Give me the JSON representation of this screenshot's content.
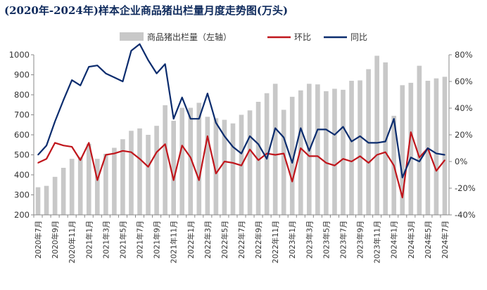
{
  "chart_data": {
    "type": "bar+line",
    "title": "(2020年-2024年)样本企业商品猪出栏量月度走势图(万头)",
    "legend_position": "top",
    "grid": false,
    "categories": [
      "2020年7月",
      "2020年8月",
      "2020年9月",
      "2020年10月",
      "2020年11月",
      "2020年12月",
      "2021年1月",
      "2021年2月",
      "2021年3月",
      "2021年4月",
      "2021年5月",
      "2021年6月",
      "2021年7月",
      "2021年8月",
      "2021年9月",
      "2021年10月",
      "2021年11月",
      "2021年12月",
      "2022年1月",
      "2022年2月",
      "2022年3月",
      "2022年4月",
      "2022年5月",
      "2022年6月",
      "2022年7月",
      "2022年8月",
      "2022年9月",
      "2022年10月",
      "2022年11月",
      "2022年12月",
      "2023年1月",
      "2023年2月",
      "2023年3月",
      "2023年4月",
      "2023年5月",
      "2023年6月",
      "2023年7月",
      "2023年8月",
      "2023年9月",
      "2023年10月",
      "2023年11月",
      "2023年12月",
      "2024年1月",
      "2024年2月",
      "2024年3月",
      "2024年4月",
      "2024年5月",
      "2024年6月",
      "2024年7月"
    ],
    "x_tick_labels": [
      "2020年7月",
      "2020年9月",
      "2020年11月",
      "2021年1月",
      "2021年3月",
      "2021年5月",
      "2021年7月",
      "2021年9月",
      "2021年11月",
      "2022年1月",
      "2022年3月",
      "2022年5月",
      "2022年7月",
      "2022年9月",
      "2022年11月",
      "2023年1月",
      "2023年3月",
      "2023年5月",
      "2023年7月",
      "2023年9月",
      "2023年11月",
      "2024年1月",
      "2024年3月",
      "2024年5月",
      "2024年7月"
    ],
    "y_left": {
      "min": 200,
      "max": 1000,
      "ticks": [
        "200",
        "300",
        "400",
        "500",
        "600",
        "700",
        "800",
        "900",
        "1000"
      ]
    },
    "y_right": {
      "min": -40,
      "max": 80,
      "ticks": [
        "-40%",
        "-20%",
        "0%",
        "20%",
        "40%",
        "60%",
        "80%"
      ]
    },
    "series": [
      {
        "name": "商品猪出栏量（左轴）",
        "type": "bar",
        "axis": "left",
        "color": "#c8c8c8",
        "values": [
          338,
          345,
          390,
          435,
          480,
          490,
          555,
          480,
          505,
          535,
          578,
          620,
          632,
          600,
          645,
          748,
          670,
          735,
          735,
          760,
          690,
          683,
          675,
          657,
          700,
          722,
          765,
          808,
          855,
          725,
          790,
          822,
          855,
          852,
          818,
          830,
          825,
          870,
          872,
          928,
          995,
          962,
          695,
          848,
          860,
          945,
          870,
          882,
          890
        ]
      },
      {
        "name": "环比",
        "type": "line",
        "axis": "right",
        "color": "#c0161c",
        "values": [
          -1,
          2,
          14,
          12,
          11,
          1,
          14,
          -14,
          5,
          6,
          8,
          7,
          2,
          -4,
          7,
          13,
          -14,
          12,
          3,
          -14,
          19,
          -9,
          0,
          -1,
          -3,
          9,
          1,
          6,
          5,
          6,
          -15,
          10,
          4,
          4,
          -1,
          -3,
          2,
          0,
          4,
          -1,
          5,
          7,
          -3,
          -27,
          22,
          3,
          10,
          -7,
          1
        ]
      },
      {
        "name": "同比",
        "type": "line",
        "axis": "right",
        "color": "#0b2c6e",
        "values": [
          5,
          12,
          30,
          46,
          61,
          57,
          71,
          72,
          66,
          63,
          60,
          83,
          88,
          76,
          66,
          73,
          32,
          48,
          32,
          32,
          51,
          29,
          19,
          11,
          6,
          19,
          13,
          2,
          25,
          18,
          -1,
          25,
          8,
          24,
          24,
          20,
          26,
          15,
          19,
          14,
          14,
          15,
          32,
          -12,
          3,
          0,
          10,
          6,
          5
        ]
      }
    ]
  }
}
